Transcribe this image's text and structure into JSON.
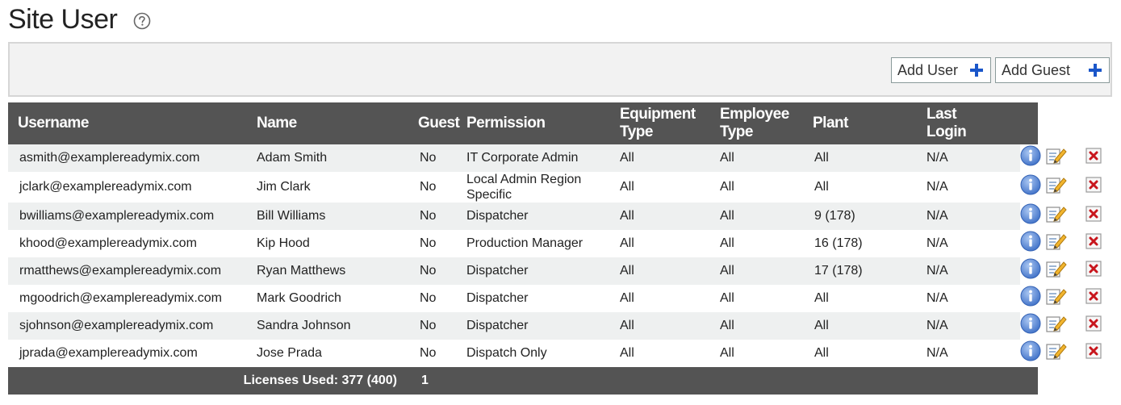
{
  "page": {
    "title": "Site User"
  },
  "toolbar": {
    "add_user_label": "Add User",
    "add_guest_label": "Add Guest"
  },
  "table": {
    "headers": {
      "username": "Username",
      "name": "Name",
      "guest": "Guest",
      "permission": "Permission",
      "equipment_type": [
        "Equipment",
        "Type"
      ],
      "employee_type": [
        "Employee",
        "Type"
      ],
      "plant": "Plant",
      "last_login": [
        "Last",
        "Login"
      ]
    },
    "rows": [
      {
        "username": "asmith@examplereadymix.com",
        "name": "Adam Smith",
        "guest": "No",
        "permission": "IT Corporate Admin",
        "equipment_type": "All",
        "employee_type": "All",
        "plant": "All",
        "last_login": "N/A"
      },
      {
        "username": "jclark@examplereadymix.com",
        "name": "Jim Clark",
        "guest": "No",
        "permission": "Local Admin Region Specific",
        "equipment_type": "All",
        "employee_type": "All",
        "plant": "All",
        "last_login": "N/A"
      },
      {
        "username": "bwilliams@examplereadymix.com",
        "name": "Bill Williams",
        "guest": "No",
        "permission": "Dispatcher",
        "equipment_type": "All",
        "employee_type": "All",
        "plant": "9 (178)",
        "last_login": "N/A"
      },
      {
        "username": "khood@examplereadymix.com",
        "name": "Kip Hood",
        "guest": "No",
        "permission": "Production Manager",
        "equipment_type": "All",
        "employee_type": "All",
        "plant": "16 (178)",
        "last_login": "N/A"
      },
      {
        "username": "rmatthews@examplereadymix.com",
        "name": "Ryan Matthews",
        "guest": "No",
        "permission": "Dispatcher",
        "equipment_type": "All",
        "employee_type": "All",
        "plant": "17 (178)",
        "last_login": "N/A"
      },
      {
        "username": "mgoodrich@examplereadymix.com",
        "name": "Mark Goodrich",
        "guest": "No",
        "permission": "Dispatcher",
        "equipment_type": "All",
        "employee_type": "All",
        "plant": "All",
        "last_login": "N/A"
      },
      {
        "username": "sjohnson@examplereadymix.com",
        "name": "Sandra Johnson",
        "guest": "No",
        "permission": "Dispatcher",
        "equipment_type": "All",
        "employee_type": "All",
        "plant": "All",
        "last_login": "N/A"
      },
      {
        "username": "jprada@examplereadymix.com",
        "name": "Jose Prada",
        "guest": "No",
        "permission": "Dispatch Only",
        "equipment_type": "All",
        "employee_type": "All",
        "plant": "All",
        "last_login": "N/A"
      }
    ],
    "row_icons": [
      "info-icon",
      "edit-icon",
      "delete-icon"
    ],
    "footer": {
      "licenses_label": "Licenses Used: 377 (400)",
      "guest_count": "1"
    }
  },
  "colors": {
    "header_bg": "#545454",
    "row_alt_bg": "#eef0f0",
    "toolbar_bg": "#f2f2f2",
    "plus_blue": "#1a56c9",
    "info_blue": "#4a7fd4",
    "delete_red": "#c8161d"
  }
}
